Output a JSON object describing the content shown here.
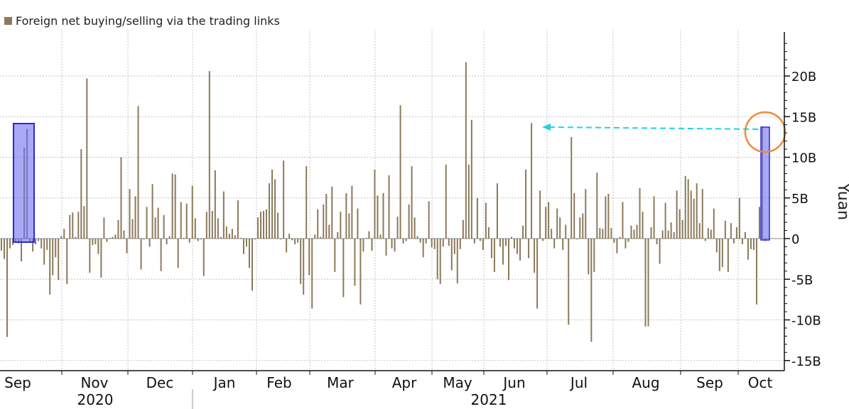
{
  "chart_data": {
    "type": "bar",
    "legend": "Foreign net buying/selling via the trading links",
    "ylabel": "Yuan",
    "ylim": [
      -17,
      25.5
    ],
    "y_ticks": [
      {
        "value": 20,
        "label": "20B"
      },
      {
        "value": 15,
        "label": "15B"
      },
      {
        "value": 10,
        "label": "10B"
      },
      {
        "value": 5,
        "label": "5B"
      },
      {
        "value": 0,
        "label": "0"
      },
      {
        "value": -5,
        "label": "-5B"
      },
      {
        "value": -10,
        "label": "-10B"
      },
      {
        "value": -15,
        "label": "-15B"
      }
    ],
    "month_labels": [
      "Sep",
      "Nov",
      "Dec",
      "Jan",
      "Feb",
      "Mar",
      "Apr",
      "May",
      "Jun",
      "Jul",
      "Aug",
      "Sep",
      "Oct"
    ],
    "year_labels": [
      "2020",
      "2021"
    ],
    "grid": true,
    "series": [
      {
        "values": [
          -1.5,
          -2.5,
          -12.1,
          -1.2,
          -0.8,
          -0.4,
          -0.6,
          -2.8,
          11.2,
          13.5,
          -0.5,
          -1.6,
          -0.7,
          -0.3,
          -1.2,
          -3.2,
          -1.4,
          -6.9,
          -4.5,
          -2.3,
          -5.1,
          0.3,
          1.2,
          -5.6,
          2.9,
          3.2,
          0.2,
          3.3,
          11.0,
          4.0,
          19.7,
          -4.2,
          -0.8,
          -0.7,
          -1.9,
          -4.8,
          2.6,
          -0.4,
          0.1,
          0.2,
          0.5,
          2.3,
          10.0,
          1.0,
          -1.8,
          6.1,
          2.4,
          5.2,
          16.3,
          -3.8,
          -0.1,
          3.9,
          -1.0,
          6.7,
          2.6,
          3.8,
          -4.0,
          2.9,
          -0.7,
          0.3,
          8.0,
          7.9,
          -3.6,
          4.5,
          0.1,
          4.3,
          -0.5,
          6.5,
          2.5,
          -0.3,
          -0.1,
          -4.6,
          3.3,
          20.6,
          3.4,
          8.4,
          2.5,
          0.2,
          5.8,
          1.5,
          0.6,
          1.2,
          0.4,
          4.7,
          0.1,
          -1.9,
          -1.0,
          -3.6,
          -6.4,
          -0.1,
          2.6,
          3.3,
          3.4,
          3.6,
          6.8,
          8.5,
          7.3,
          3.2,
          -0.1,
          9.6,
          -1.7,
          0.6,
          -0.2,
          -0.7,
          -0.5,
          -5.6,
          -6.9,
          8.9,
          -4.5,
          -8.6,
          0.5,
          3.6,
          0.2,
          4.2,
          5.5,
          1.7,
          6.4,
          -4.1,
          0.8,
          3.3,
          -7.2,
          5.6,
          3.1,
          6.5,
          -5.8,
          3.7,
          -8.1,
          -1.6,
          0.1,
          0.9,
          -1.5,
          8.5,
          5.3,
          0.5,
          5.6,
          -2.1,
          7.8,
          -1.2,
          -1.6,
          2.7,
          16.4,
          -0.6,
          -0.3,
          4.2,
          8.9,
          2.6,
          0.3,
          -0.5,
          -2.3,
          -0.6,
          4.6,
          -1.1,
          -1.3,
          -5.0,
          -5.6,
          -1.0,
          9.1,
          -0.9,
          -3.9,
          -1.9,
          -5.5,
          -1.3,
          2.3,
          21.7,
          9.1,
          14.6,
          -0.6,
          5.0,
          -0.3,
          -1.4,
          4.4,
          1.4,
          -2.4,
          -4.1,
          6.8,
          -1.0,
          -3.2,
          -0.9,
          -5.1,
          0.2,
          -1.2,
          -1.9,
          -2.7,
          1.6,
          8.5,
          -2.4,
          14.2,
          -4.2,
          -8.6,
          5.9,
          -0.3,
          3.9,
          4.5,
          1.2,
          -1.2,
          3.7,
          2.6,
          -1.4,
          1.7,
          -10.6,
          12.5,
          5.6,
          -0.1,
          2.6,
          3.1,
          6.1,
          -4.4,
          -12.7,
          -4.1,
          8.1,
          1.3,
          1.2,
          5.2,
          5.5,
          1.3,
          -0.5,
          -1.8,
          0.2,
          4.5,
          -1.2,
          -0.4,
          1.6,
          1.1,
          1.7,
          6.2,
          3.3,
          -10.8,
          -10.8,
          1.4,
          5.2,
          -0.7,
          -3.1,
          1.0,
          4.4,
          1.0,
          2.0,
          0.8,
          5.9,
          3.6,
          2.3,
          7.7,
          7.3,
          5.9,
          4.9,
          6.8,
          1.9,
          6.1,
          -0.3,
          1.3,
          1.1,
          3.7,
          -1.7,
          -4.0,
          -3.5,
          2.2,
          -4.1,
          1.9,
          -0.6,
          1.4,
          5.0,
          -0.7,
          0.8,
          -2.6,
          -1.3,
          -1.4,
          -8.1,
          3.9,
          13.8,
          -0.3
        ],
        "color": "#8b7a5a"
      }
    ],
    "annotations": {
      "highlight_box_color": "#6e6ef2",
      "circle_color": "#ee8a3a",
      "arrow_color": "#22d0e8"
    }
  }
}
